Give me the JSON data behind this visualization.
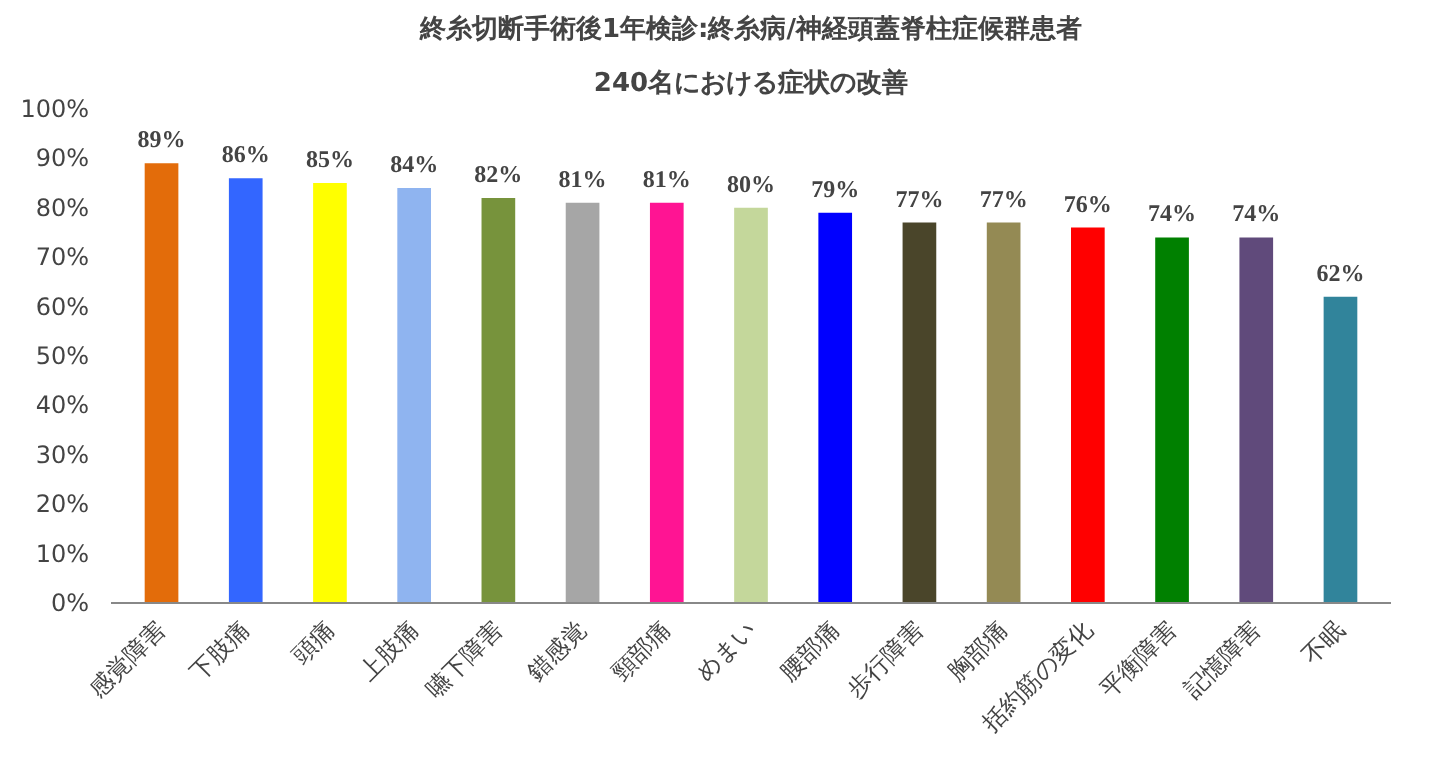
{
  "chart_data": {
    "type": "bar",
    "title": "終糸切断手術後1年検診:終糸病/神経頭蓋脊柱症候群患者",
    "subtitle": "240名における症状の改善",
    "categories": [
      "感覚障害",
      "下肢痛",
      "頭痛",
      "上肢痛",
      "嚥下障害",
      "錯感覚",
      "頸部痛",
      "めまい",
      "腰部痛",
      "歩行障害",
      "胸部痛",
      "括約筋の変化",
      "平衡障害",
      "記憶障害",
      "不眠"
    ],
    "values": [
      89,
      86,
      85,
      84,
      82,
      81,
      81,
      80,
      79,
      77,
      77,
      76,
      74,
      74,
      62
    ],
    "value_labels": [
      "89%",
      "86%",
      "85%",
      "84%",
      "82%",
      "81%",
      "81%",
      "80%",
      "79%",
      "77%",
      "77%",
      "76%",
      "74%",
      "74%",
      "62%"
    ],
    "colors": [
      "#e36c0a",
      "#3366ff",
      "#ffff00",
      "#8fb4f0",
      "#77933c",
      "#a6a6a6",
      "#ff1493",
      "#c4d79b",
      "#0000ff",
      "#4a452a",
      "#948a54",
      "#ff0000",
      "#008000",
      "#604a7b",
      "#31849b"
    ],
    "ylim": [
      0,
      100
    ],
    "yticks": [
      {
        "value": 0,
        "label": "0%"
      },
      {
        "value": 10,
        "label": "10%"
      },
      {
        "value": 20,
        "label": "20%"
      },
      {
        "value": 30,
        "label": "30%"
      },
      {
        "value": 40,
        "label": "40%"
      },
      {
        "value": 50,
        "label": "50%"
      },
      {
        "value": 60,
        "label": "60%"
      },
      {
        "value": 70,
        "label": "70%"
      },
      {
        "value": 80,
        "label": "80%"
      },
      {
        "value": 90,
        "label": "90%"
      },
      {
        "value": 100,
        "label": "100%"
      }
    ],
    "grid": false
  }
}
